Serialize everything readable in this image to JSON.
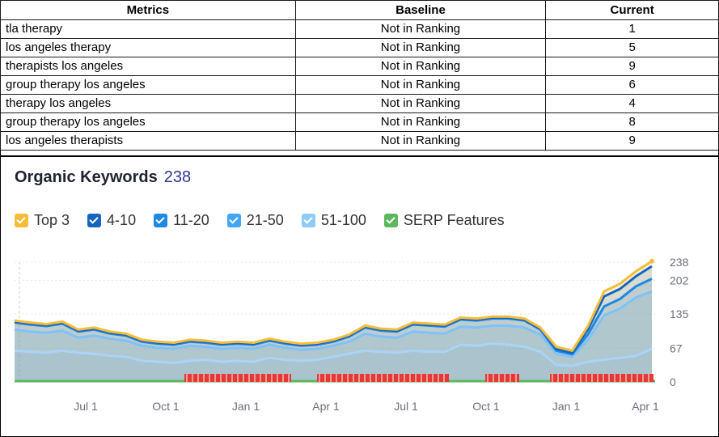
{
  "table": {
    "headers": [
      "Metrics",
      "Baseline",
      "Current"
    ],
    "rows": [
      [
        "tla therapy",
        "Not in Ranking",
        "1"
      ],
      [
        "los angeles therapy",
        "Not in Ranking",
        "5"
      ],
      [
        "therapists los angeles",
        "Not in Ranking",
        "9"
      ],
      [
        "group therapy los angeles",
        "Not in Ranking",
        "6"
      ],
      [
        "therapy los angeles",
        "Not in Ranking",
        "4"
      ],
      [
        "group therapy los angeles",
        "Not in Ranking",
        "8"
      ],
      [
        "los angeles therapists",
        "Not in Ranking",
        "9"
      ]
    ]
  },
  "panel": {
    "title": "Organic Keywords",
    "count": "238"
  },
  "legend": [
    {
      "label": "Top 3",
      "color": "#f6bd3a"
    },
    {
      "label": "4-10",
      "color": "#1565c0"
    },
    {
      "label": "11-20",
      "color": "#1e88e5"
    },
    {
      "label": "21-50",
      "color": "#42a5f5"
    },
    {
      "label": "51-100",
      "color": "#90caf9"
    },
    {
      "label": "SERP Features",
      "color": "#5cb85c"
    }
  ],
  "chart_data": {
    "type": "area",
    "x_ticks": [
      "Jul 1",
      "Oct 1",
      "Jan 1",
      "Apr 1",
      "Jul 1",
      "Oct 1",
      "Jan 1",
      "Apr 1"
    ],
    "y_ticks": [
      0,
      67,
      135,
      202,
      238
    ],
    "ylim": [
      0,
      238
    ],
    "series": [
      {
        "name": "Top 3",
        "color": "#f6bd3a",
        "values": [
          122,
          118,
          115,
          120,
          104,
          108,
          100,
          96,
          84,
          80,
          78,
          84,
          82,
          78,
          80,
          78,
          86,
          80,
          76,
          78,
          84,
          94,
          112,
          106,
          104,
          118,
          116,
          114,
          128,
          126,
          130,
          130,
          126,
          108,
          70,
          62,
          112,
          180,
          195,
          220,
          240
        ]
      },
      {
        "name": "4-10",
        "color": "#1565c0",
        "values": [
          120,
          116,
          113,
          118,
          102,
          106,
          98,
          94,
          82,
          78,
          76,
          82,
          80,
          76,
          78,
          76,
          84,
          78,
          74,
          76,
          82,
          92,
          110,
          104,
          102,
          116,
          114,
          112,
          126,
          124,
          128,
          128,
          124,
          106,
          66,
          58,
          105,
          170,
          185,
          210,
          230
        ]
      },
      {
        "name": "11-20",
        "color": "#1e88e5",
        "values": [
          118,
          114,
          111,
          116,
          100,
          104,
          96,
          92,
          80,
          76,
          74,
          80,
          78,
          74,
          76,
          74,
          82,
          76,
          72,
          74,
          80,
          90,
          108,
          102,
          100,
          114,
          112,
          110,
          124,
          122,
          126,
          126,
          122,
          104,
          62,
          55,
          95,
          150,
          165,
          190,
          205
        ]
      },
      {
        "name": "21-50",
        "color": "#7ec2f7",
        "values": [
          104,
          100,
          98,
          102,
          88,
          92,
          86,
          82,
          72,
          68,
          66,
          72,
          70,
          66,
          68,
          66,
          74,
          68,
          64,
          66,
          72,
          80,
          96,
          90,
          88,
          100,
          98,
          96,
          110,
          108,
          112,
          112,
          108,
          94,
          56,
          50,
          84,
          132,
          146,
          168,
          180
        ]
      },
      {
        "name": "51-100",
        "color": "#a9d3f8",
        "values": [
          62,
          60,
          58,
          62,
          58,
          56,
          52,
          50,
          42,
          40,
          38,
          42,
          44,
          40,
          42,
          40,
          48,
          44,
          42,
          44,
          50,
          56,
          62,
          60,
          58,
          62,
          60,
          60,
          74,
          72,
          76,
          74,
          70,
          60,
          34,
          32,
          40,
          44,
          48,
          52,
          66
        ]
      }
    ],
    "serp_features": {
      "color": "#5cb85c",
      "value": 2
    }
  }
}
